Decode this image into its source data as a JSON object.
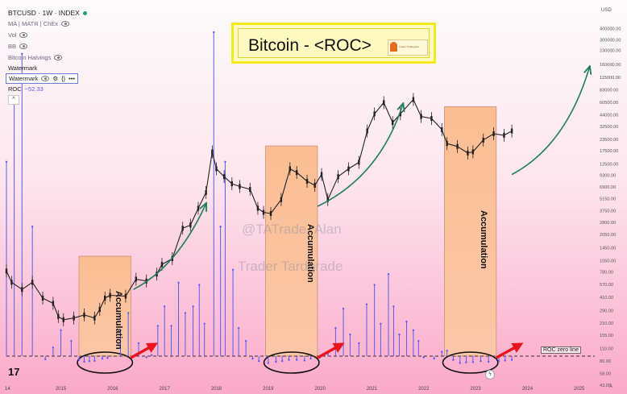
{
  "header": {
    "symbol_line": "BTCUSD · 1W · INDEX",
    "indicators": [
      "MA | MATR | ChEx",
      "Vol",
      "BB",
      "Bitcoin Halvings",
      "Watermark"
    ],
    "watermark_edit_label": "Watermark",
    "roc_label": "ROC",
    "roc_value": "−52.33",
    "pane_button": "^"
  },
  "title_box": {
    "title": "Bitcoin - <ROC>",
    "logo_text": "Trader Tradegrade",
    "colors": {
      "border": "#f3ea1c",
      "fill": "#fffbc0"
    }
  },
  "watermarks": [
    "@TATrade_Alan",
    "Trader Tardgrade"
  ],
  "annotations": {
    "accumulation_label": "Accumulation",
    "roc_zero_line_label": "ROC zero line"
  },
  "branding": {
    "tv_logo": "17"
  },
  "colors": {
    "background_top": "#fdfbfc",
    "background_bottom": "#fba9c8",
    "accum_box": "#fbbe92",
    "roc_line": "#5b5bf0",
    "arrow_green": "#1f7e5c",
    "arrow_red": "#e8141b",
    "candles": "#222222",
    "ellipse": "#111111"
  },
  "chart_data": [
    {
      "type": "line",
      "name_ref": "header.symbol_line",
      "yscale": "log",
      "ylim": [
        43,
        650000
      ],
      "xlim": [
        2014.0,
        2025.35
      ],
      "x_ticks": [
        "14",
        "2015",
        "2016",
        "2017",
        "2018",
        "2019",
        "2020",
        "2021",
        "2022",
        "2023",
        "2024",
        "2025"
      ],
      "y_axis_unit_label": "USD",
      "y_ticks": [
        400000,
        300000,
        230000,
        160000,
        115000,
        83000,
        60500,
        44000,
        32500,
        23500,
        17500,
        12500,
        9300,
        6900,
        5150,
        3750,
        2800,
        2050,
        1450,
        1050,
        780,
        570,
        410,
        290,
        210,
        155,
        110,
        80,
        58,
        43
      ],
      "x": [
        2014.0,
        2014.1,
        2014.3,
        2014.5,
        2014.7,
        2014.9,
        2015.0,
        2015.1,
        2015.3,
        2015.5,
        2015.7,
        2015.8,
        2015.9,
        2016.0,
        2016.3,
        2016.5,
        2016.7,
        2016.9,
        2017.0,
        2017.2,
        2017.4,
        2017.55,
        2017.7,
        2017.85,
        2017.97,
        2018.05,
        2018.2,
        2018.35,
        2018.5,
        2018.7,
        2018.85,
        2018.96,
        2019.1,
        2019.3,
        2019.47,
        2019.6,
        2019.8,
        2019.95,
        2020.08,
        2020.2,
        2020.4,
        2020.6,
        2020.8,
        2020.96,
        2021.1,
        2021.28,
        2021.45,
        2021.6,
        2021.85,
        2022.0,
        2022.2,
        2022.4,
        2022.5,
        2022.7,
        2022.9,
        2023.0,
        2023.2,
        2023.4,
        2023.6,
        2023.75
      ],
      "y": [
        800,
        600,
        500,
        600,
        400,
        350,
        250,
        230,
        240,
        260,
        240,
        300,
        400,
        430,
        420,
        650,
        620,
        740,
        950,
        1100,
        2400,
        2600,
        4000,
        6000,
        17000,
        11000,
        9000,
        7500,
        7000,
        6500,
        4000,
        3600,
        3500,
        5000,
        11000,
        10000,
        8000,
        7200,
        9500,
        5000,
        9000,
        11000,
        13000,
        29000,
        45000,
        60000,
        36000,
        45000,
        65000,
        42000,
        40000,
        30000,
        21000,
        19500,
        16500,
        17000,
        23000,
        27000,
        26000,
        29000
      ]
    },
    {
      "type": "bar",
      "name_ref": "header.roc_label",
      "ylim": [
        -90,
        1500
      ],
      "x": [
        2014.0,
        2014.15,
        2014.3,
        2014.5,
        2014.75,
        2014.9,
        2015.05,
        2015.25,
        2015.4,
        2015.5,
        2015.6,
        2015.7,
        2015.85,
        2015.95,
        2016.2,
        2016.35,
        2016.55,
        2016.7,
        2016.8,
        2016.92,
        2017.05,
        2017.18,
        2017.32,
        2017.45,
        2017.6,
        2017.72,
        2017.82,
        2018.0,
        2018.13,
        2018.22,
        2018.37,
        2018.48,
        2018.62,
        2018.75,
        2018.87,
        2019.05,
        2019.2,
        2019.32,
        2019.45,
        2019.6,
        2019.75,
        2019.87,
        2020.05,
        2020.2,
        2020.35,
        2020.5,
        2020.63,
        2020.8,
        2020.95,
        2021.1,
        2021.22,
        2021.37,
        2021.47,
        2021.58,
        2021.72,
        2021.85,
        2021.95,
        2022.05,
        2022.25,
        2022.4,
        2022.5,
        2022.62,
        2022.75,
        2022.87,
        2023.0,
        2023.15,
        2023.3,
        2023.5,
        2023.62,
        2023.75
      ],
      "y": [
        900,
        1200,
        1400,
        600,
        -25,
        40,
        120,
        70,
        -30,
        -45,
        -40,
        -38,
        -20,
        -15,
        120,
        200,
        60,
        -10,
        5,
        140,
        230,
        140,
        340,
        200,
        230,
        330,
        150,
        1500,
        600,
        900,
        400,
        130,
        70,
        -20,
        -40,
        -55,
        -45,
        -40,
        -30,
        -30,
        -35,
        -20,
        -10,
        10,
        130,
        220,
        100,
        60,
        240,
        330,
        150,
        380,
        230,
        100,
        160,
        120,
        70,
        -10,
        -20,
        20,
        25,
        -30,
        -55,
        -50,
        -48,
        -40,
        -45,
        -40,
        -35,
        -30
      ]
    }
  ]
}
